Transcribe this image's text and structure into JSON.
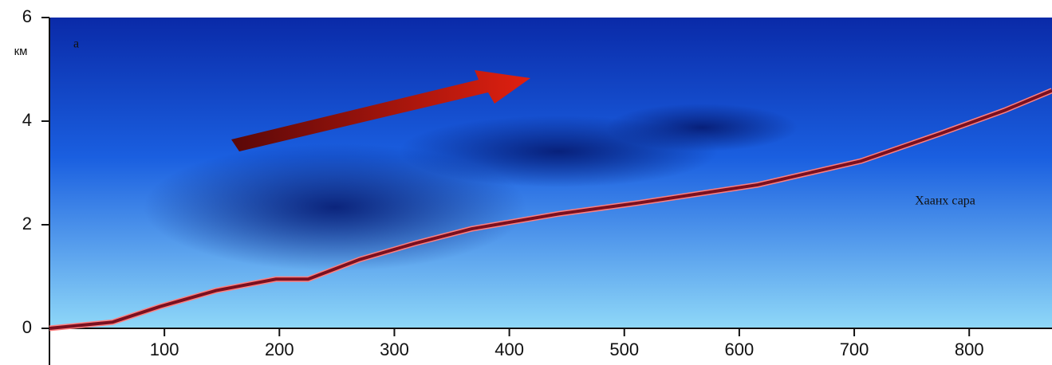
{
  "chart_data": {
    "type": "line",
    "y_label": "км",
    "annotations": [
      "а",
      "Хаанх сара"
    ],
    "x": [
      0,
      55,
      96,
      145,
      197,
      225,
      270,
      318,
      367,
      443,
      512,
      616,
      706,
      775,
      831,
      872
    ],
    "series": [
      {
        "color": "#7a1020",
        "values": [
          0,
          0.12,
          0.42,
          0.73,
          0.95,
          0.95,
          1.33,
          1.64,
          1.92,
          2.21,
          2.42,
          2.77,
          3.23,
          3.76,
          4.21,
          4.59
        ]
      }
    ],
    "xlim": [
      0,
      872
    ],
    "ylim": [
      0,
      6
    ],
    "xticks": [
      100,
      200,
      300,
      400,
      500,
      600,
      700,
      800
    ],
    "yticks": [
      0,
      2,
      4,
      6
    ]
  }
}
